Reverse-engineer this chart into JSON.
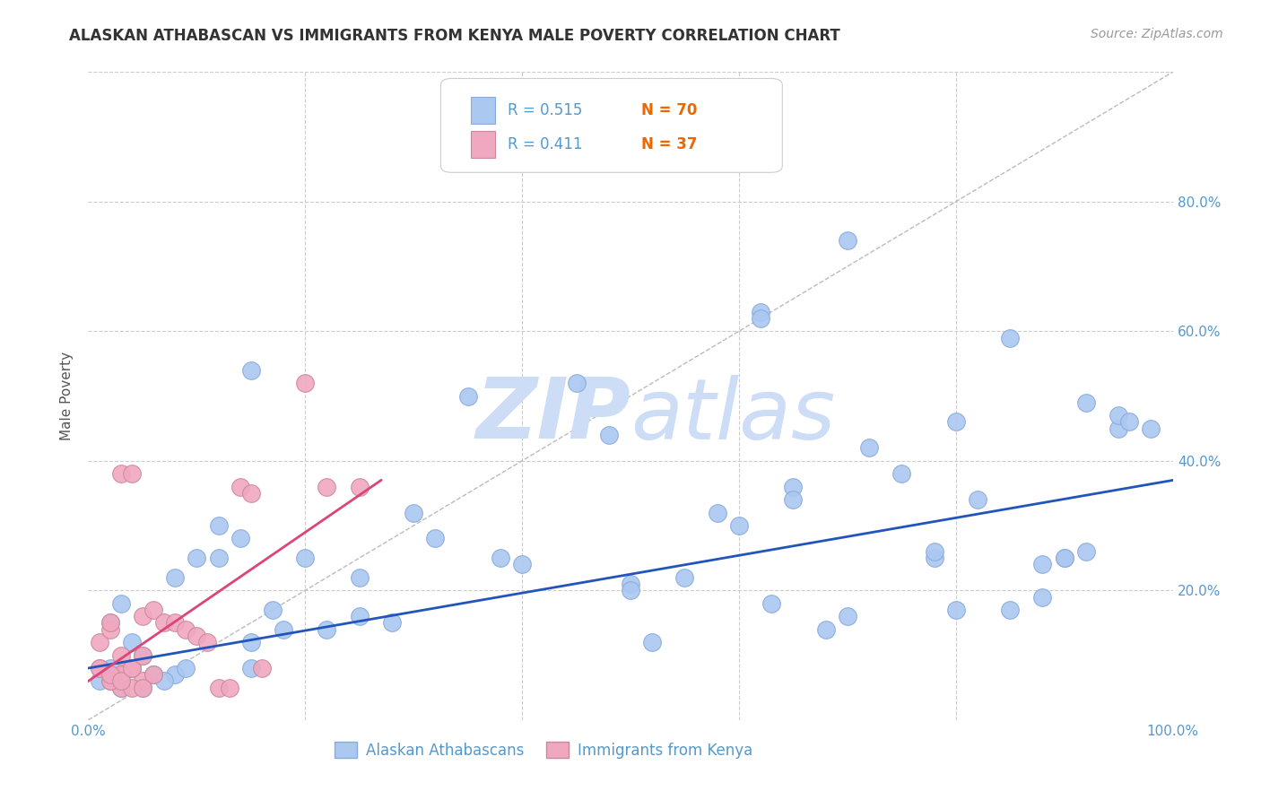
{
  "title": "ALASKAN ATHABASCAN VS IMMIGRANTS FROM KENYA MALE POVERTY CORRELATION CHART",
  "source": "Source: ZipAtlas.com",
  "ylabel": "Male Poverty",
  "xlim": [
    0,
    1.0
  ],
  "ylim": [
    0,
    1.0
  ],
  "ytick_vals": [
    0.0,
    0.2,
    0.4,
    0.6,
    0.8
  ],
  "ytick_labels": [
    "",
    "20.0%",
    "40.0%",
    "60.0%",
    "80.0%"
  ],
  "xtick_vals": [
    0.0,
    0.2,
    0.4,
    0.6,
    0.8,
    1.0
  ],
  "xtick_labels": [
    "0.0%",
    "",
    "",
    "",
    "",
    "100.0%"
  ],
  "watermark_zip": "ZIP",
  "watermark_atlas": "atlas",
  "blue_R": "0.515",
  "blue_N": "70",
  "pink_R": "0.411",
  "pink_N": "37",
  "blue_scatter_x": [
    0.02,
    0.03,
    0.04,
    0.01,
    0.05,
    0.06,
    0.02,
    0.03,
    0.08,
    0.1,
    0.12,
    0.15,
    0.12,
    0.14,
    0.15,
    0.2,
    0.22,
    0.25,
    0.3,
    0.32,
    0.35,
    0.38,
    0.4,
    0.45,
    0.48,
    0.5,
    0.55,
    0.58,
    0.6,
    0.62,
    0.65,
    0.65,
    0.68,
    0.7,
    0.72,
    0.75,
    0.78,
    0.8,
    0.82,
    0.85,
    0.88,
    0.9,
    0.92,
    0.95,
    0.98,
    0.15,
    0.17,
    0.18,
    0.08,
    0.09,
    0.03,
    0.04,
    0.05,
    0.06,
    0.07,
    0.25,
    0.28,
    0.5,
    0.52,
    0.62,
    0.63,
    0.7,
    0.78,
    0.8,
    0.85,
    0.88,
    0.9,
    0.92,
    0.95,
    0.96
  ],
  "blue_scatter_y": [
    0.08,
    0.05,
    0.12,
    0.06,
    0.1,
    0.07,
    0.15,
    0.18,
    0.22,
    0.25,
    0.3,
    0.54,
    0.25,
    0.28,
    0.12,
    0.25,
    0.14,
    0.16,
    0.32,
    0.28,
    0.5,
    0.25,
    0.24,
    0.52,
    0.44,
    0.21,
    0.22,
    0.32,
    0.3,
    0.63,
    0.36,
    0.34,
    0.14,
    0.16,
    0.42,
    0.38,
    0.25,
    0.17,
    0.34,
    0.17,
    0.24,
    0.25,
    0.49,
    0.45,
    0.45,
    0.08,
    0.17,
    0.14,
    0.07,
    0.08,
    0.06,
    0.08,
    0.05,
    0.07,
    0.06,
    0.22,
    0.15,
    0.2,
    0.12,
    0.62,
    0.18,
    0.74,
    0.26,
    0.46,
    0.59,
    0.19,
    0.25,
    0.26,
    0.47,
    0.46
  ],
  "pink_scatter_x": [
    0.01,
    0.02,
    0.03,
    0.01,
    0.02,
    0.03,
    0.04,
    0.05,
    0.06,
    0.02,
    0.03,
    0.04,
    0.05,
    0.06,
    0.07,
    0.08,
    0.09,
    0.1,
    0.11,
    0.12,
    0.13,
    0.14,
    0.15,
    0.16,
    0.2,
    0.22,
    0.25,
    0.03,
    0.04,
    0.05,
    0.02,
    0.03,
    0.01,
    0.02,
    0.03,
    0.04,
    0.05
  ],
  "pink_scatter_y": [
    0.08,
    0.06,
    0.1,
    0.12,
    0.14,
    0.07,
    0.08,
    0.06,
    0.07,
    0.15,
    0.38,
    0.38,
    0.16,
    0.17,
    0.15,
    0.15,
    0.14,
    0.13,
    0.12,
    0.05,
    0.05,
    0.36,
    0.35,
    0.08,
    0.52,
    0.36,
    0.36,
    0.05,
    0.05,
    0.05,
    0.06,
    0.07,
    0.08,
    0.07,
    0.06,
    0.08,
    0.1
  ],
  "blue_line_x": [
    0.0,
    1.0
  ],
  "blue_line_y": [
    0.08,
    0.37
  ],
  "pink_line_x": [
    0.0,
    0.27
  ],
  "pink_line_y": [
    0.06,
    0.37
  ],
  "diag_line_x": [
    0.0,
    1.0
  ],
  "diag_line_y": [
    0.0,
    1.0
  ],
  "scatter_color_blue": "#aac8f0",
  "scatter_color_pink": "#f0a8c0",
  "line_color_blue": "#2255bb",
  "line_color_pink": "#dd4477",
  "diag_color": "#bbbbbb",
  "grid_color": "#cccccc",
  "title_color": "#333333",
  "source_color": "#999999",
  "tick_color": "#5599cc",
  "label_color": "#555555",
  "legend_r_color": "#5599cc",
  "legend_n_color": "#ee6600",
  "watermark_color": "#cdddf5",
  "background_color": "#ffffff",
  "title_fontsize": 12,
  "source_fontsize": 10,
  "ylabel_fontsize": 11,
  "tick_fontsize": 11,
  "legend_fontsize": 12,
  "watermark_fontsize": 68
}
